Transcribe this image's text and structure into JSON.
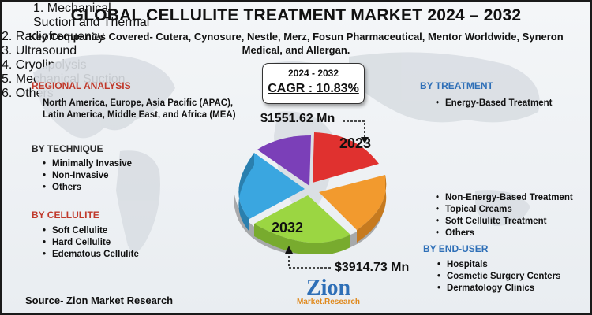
{
  "title": "GLOBAL CELLULITE TREATMENT MARKET 2024 – 2032",
  "subtitle": "Key Companies Covered- Cutera, Cynosure, Nestle, Merz, Fosun Pharmaceutical, Mentor Worldwide, Syneron Medical, and Allergan.",
  "regional": {
    "heading": "REGIONAL ANALYSIS",
    "text": "North America, Europe, Asia Pacific (APAC), Latin America, Middle East, and Africa (MEA)"
  },
  "technique": {
    "heading": "BY TECHNIQUE",
    "items": [
      "Minimally Invasive",
      "Non-Invasive",
      "Others"
    ]
  },
  "cellulite": {
    "heading": "BY CELLULITE",
    "items": [
      "Soft Cellulite",
      "Hard Cellulite",
      "Edematous Cellulite"
    ]
  },
  "treatment": {
    "heading": "BY TREATMENT",
    "energy": "Energy-Based Treatment",
    "energy_sub": [
      "1. Mechanical Suction and Thermal",
      "2. Radiofrequency",
      "3. Ultrasound",
      "4. Cryolipolysis",
      "5. Mechanical Suction",
      "6. Others"
    ],
    "others": [
      "Non-Energy-Based Treatment",
      "Topical Creams",
      "Soft Cellulite Treatment",
      "Others"
    ]
  },
  "end_user": {
    "heading": "BY END-USER",
    "items": [
      "Hospitals",
      "Cosmetic Surgery Centers",
      "Dermatology Clinics"
    ]
  },
  "cagr": {
    "years": "2024 - 2032",
    "label": "CAGR : 10.83%"
  },
  "value_2023": "$1551.62 Mn",
  "value_2032": "$3914.73 Mn",
  "year_2023": "2023",
  "year_2032": "2032",
  "source": "Source- Zion Market Research",
  "logo": {
    "main": "Zion",
    "sub": "Market.Research"
  },
  "colors": {
    "red": "#c0392b",
    "blue": "#2e6fb7",
    "slice_red": "#e0312f",
    "slice_orange": "#f29a2e",
    "slice_green": "#9bd642",
    "slice_blue": "#3aa6e0",
    "slice_purple": "#7b3fb8"
  }
}
